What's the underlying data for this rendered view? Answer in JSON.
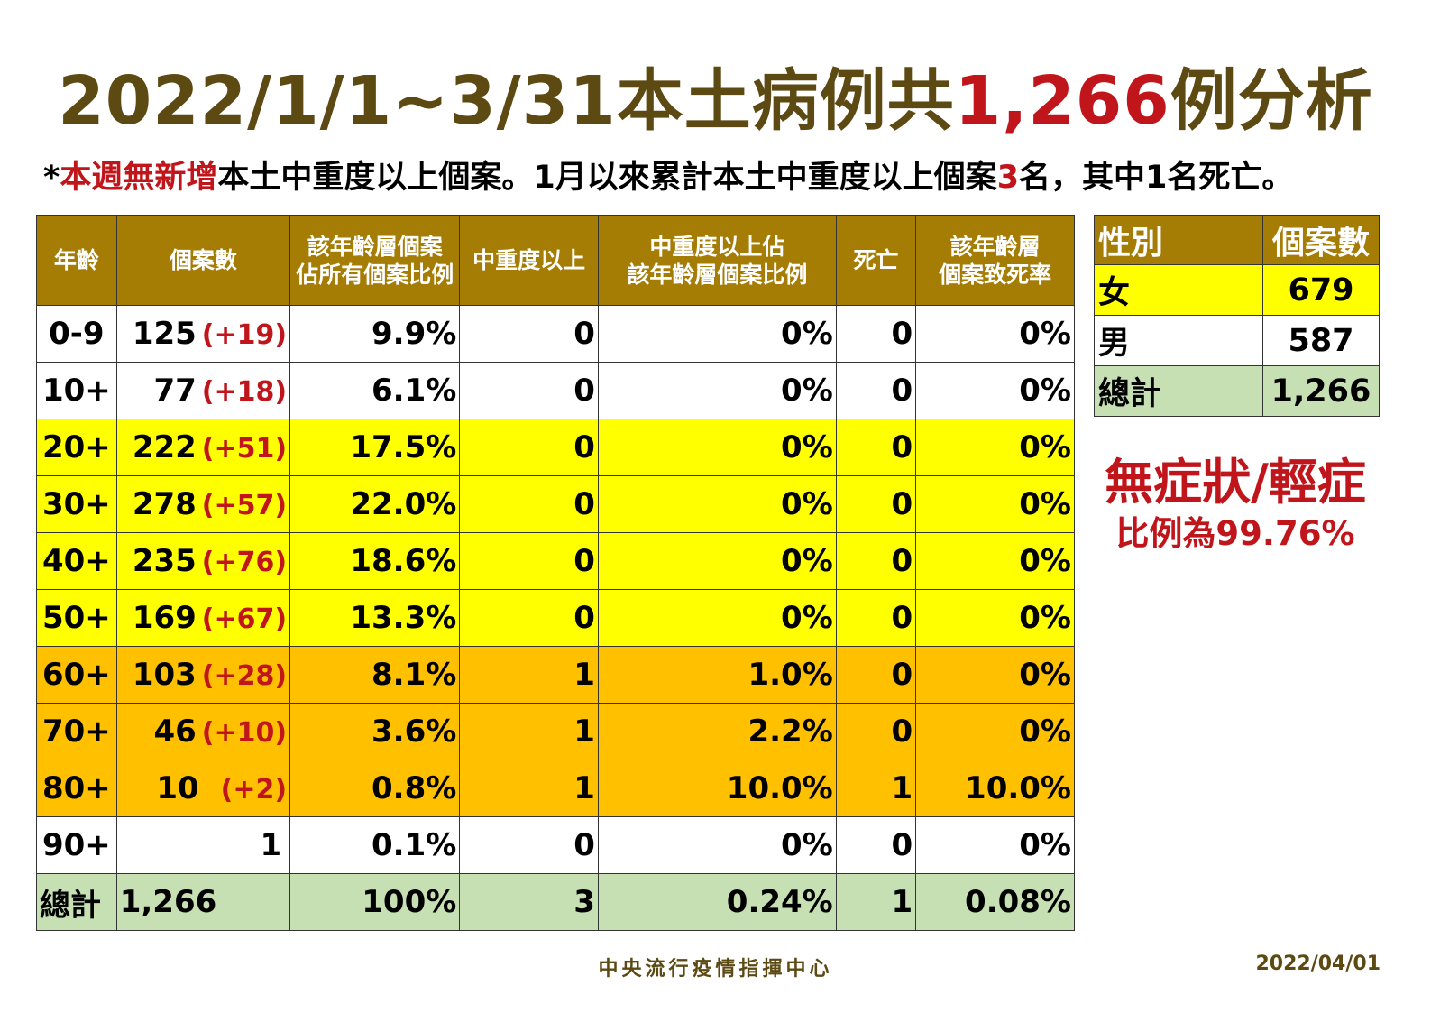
{
  "title": {
    "prefix": "2022/1/1~3/31本土病例共",
    "highlight": "1,266",
    "suffix": "例分析"
  },
  "subtitle": {
    "star": "*",
    "red1": "本週無新增",
    "text1": "本土中重度以上個案。1月以來累計本土中重度以上個案",
    "red2": "3",
    "text2": "名，其中1名死亡。"
  },
  "main_table": {
    "headers": {
      "age": "年齡",
      "cases": "個案數",
      "pct_line1": "該年齡層個案",
      "pct_line2": "佔所有個案比例",
      "severe": "中重度以上",
      "severe_pct_line1": "中重度以上佔",
      "severe_pct_line2": "該年齡層個案比例",
      "death": "死亡",
      "death_rate_line1": "該年齡層",
      "death_rate_line2": "個案致死率"
    },
    "rows": [
      {
        "age": "0-9",
        "cases": "125",
        "inc": "(+19)",
        "pct": "9.9%",
        "severe": "0",
        "severe_pct": "0%",
        "death": "0",
        "death_rate": "0%"
      },
      {
        "age": "10+",
        "cases": "77",
        "inc": "(+18)",
        "pct": "6.1%",
        "severe": "0",
        "severe_pct": "0%",
        "death": "0",
        "death_rate": "0%"
      },
      {
        "age": "20+",
        "cases": "222",
        "inc": "(+51)",
        "pct": "17.5%",
        "severe": "0",
        "severe_pct": "0%",
        "death": "0",
        "death_rate": "0%"
      },
      {
        "age": "30+",
        "cases": "278",
        "inc": "(+57)",
        "pct": "22.0%",
        "severe": "0",
        "severe_pct": "0%",
        "death": "0",
        "death_rate": "0%"
      },
      {
        "age": "40+",
        "cases": "235",
        "inc": "(+76)",
        "pct": "18.6%",
        "severe": "0",
        "severe_pct": "0%",
        "death": "0",
        "death_rate": "0%"
      },
      {
        "age": "50+",
        "cases": "169",
        "inc": "(+67)",
        "pct": "13.3%",
        "severe": "0",
        "severe_pct": "0%",
        "death": "0",
        "death_rate": "0%"
      },
      {
        "age": "60+",
        "cases": "103",
        "inc": "(+28)",
        "pct": "8.1%",
        "severe": "1",
        "severe_pct": "1.0%",
        "death": "0",
        "death_rate": "0%"
      },
      {
        "age": "70+",
        "cases": "46",
        "inc": "(+10)",
        "pct": "3.6%",
        "severe": "1",
        "severe_pct": "2.2%",
        "death": "0",
        "death_rate": "0%"
      },
      {
        "age": "80+",
        "cases": "10",
        "inc": "(+2)",
        "pct": "0.8%",
        "severe": "1",
        "severe_pct": "10.0%",
        "death": "1",
        "death_rate": "10.0%"
      },
      {
        "age": "90+",
        "cases": "1",
        "inc": "",
        "pct": "0.1%",
        "severe": "0",
        "severe_pct": "0%",
        "death": "0",
        "death_rate": "0%"
      }
    ],
    "total": {
      "age": "總計",
      "cases": "1,266",
      "pct": "100%",
      "severe": "3",
      "severe_pct": "0.24%",
      "death": "1",
      "death_rate": "0.08%"
    }
  },
  "sex_table": {
    "header_label": "性別",
    "header_count": "個案數",
    "rows": [
      {
        "label": "女",
        "count": "679"
      },
      {
        "label": "男",
        "count": "587"
      },
      {
        "label": "總計",
        "count": "1,266"
      }
    ]
  },
  "asymptomatic": {
    "line1": "無症狀/輕症",
    "line2": "比例為99.76%"
  },
  "footer": {
    "org": "中央流行疫情指揮中心",
    "date": "2022/04/01"
  },
  "colors": {
    "header_bg": "#a57c04",
    "title": "#5c4a12",
    "accent_red": "#c0151b",
    "row_yellow": "#ffff00",
    "row_orange": "#ffc000",
    "row_green": "#c6e0b4"
  }
}
